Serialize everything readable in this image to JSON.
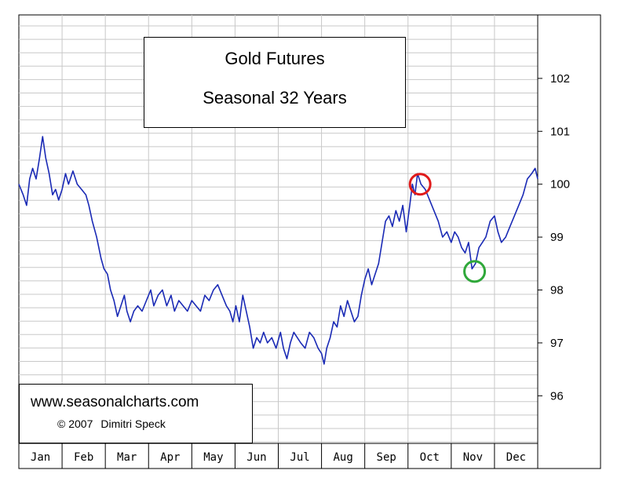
{
  "chart_data": {
    "type": "line",
    "title": "Gold Futures",
    "subtitle": "Seasonal 32 Years",
    "categories": [
      "Jan",
      "Feb",
      "Mar",
      "Apr",
      "May",
      "Jun",
      "Jul",
      "Aug",
      "Sep",
      "Oct",
      "Nov",
      "Dec"
    ],
    "y_ticks": [
      "96",
      "97",
      "98",
      "99",
      "100",
      "101",
      "102"
    ],
    "ylim": [
      95.1,
      103.2
    ],
    "x_range": [
      0,
      12
    ],
    "grid": true,
    "y_axis_side": "right",
    "series": [
      {
        "color": "#1a2ab5",
        "points": [
          [
            0.0,
            100.0
          ],
          [
            0.1,
            99.8
          ],
          [
            0.18,
            99.6
          ],
          [
            0.25,
            100.1
          ],
          [
            0.32,
            100.3
          ],
          [
            0.4,
            100.1
          ],
          [
            0.48,
            100.5
          ],
          [
            0.55,
            100.9
          ],
          [
            0.62,
            100.5
          ],
          [
            0.7,
            100.2
          ],
          [
            0.78,
            99.8
          ],
          [
            0.85,
            99.9
          ],
          [
            0.92,
            99.7
          ],
          [
            1.0,
            99.9
          ],
          [
            1.08,
            100.2
          ],
          [
            1.15,
            100.0
          ],
          [
            1.25,
            100.25
          ],
          [
            1.35,
            100.0
          ],
          [
            1.45,
            99.9
          ],
          [
            1.55,
            99.8
          ],
          [
            1.62,
            99.6
          ],
          [
            1.7,
            99.3
          ],
          [
            1.8,
            99.0
          ],
          [
            1.9,
            98.6
          ],
          [
            1.97,
            98.4
          ],
          [
            2.05,
            98.3
          ],
          [
            2.12,
            98.0
          ],
          [
            2.2,
            97.8
          ],
          [
            2.28,
            97.5
          ],
          [
            2.36,
            97.7
          ],
          [
            2.44,
            97.9
          ],
          [
            2.5,
            97.6
          ],
          [
            2.58,
            97.4
          ],
          [
            2.66,
            97.6
          ],
          [
            2.75,
            97.7
          ],
          [
            2.85,
            97.6
          ],
          [
            2.95,
            97.8
          ],
          [
            3.05,
            98.0
          ],
          [
            3.12,
            97.7
          ],
          [
            3.22,
            97.9
          ],
          [
            3.32,
            98.0
          ],
          [
            3.42,
            97.7
          ],
          [
            3.52,
            97.9
          ],
          [
            3.6,
            97.6
          ],
          [
            3.7,
            97.8
          ],
          [
            3.8,
            97.7
          ],
          [
            3.9,
            97.6
          ],
          [
            4.0,
            97.8
          ],
          [
            4.1,
            97.7
          ],
          [
            4.2,
            97.6
          ],
          [
            4.3,
            97.9
          ],
          [
            4.4,
            97.8
          ],
          [
            4.5,
            98.0
          ],
          [
            4.6,
            98.1
          ],
          [
            4.7,
            97.9
          ],
          [
            4.8,
            97.7
          ],
          [
            4.88,
            97.6
          ],
          [
            4.95,
            97.4
          ],
          [
            5.02,
            97.7
          ],
          [
            5.1,
            97.4
          ],
          [
            5.18,
            97.9
          ],
          [
            5.26,
            97.6
          ],
          [
            5.34,
            97.3
          ],
          [
            5.42,
            96.9
          ],
          [
            5.5,
            97.1
          ],
          [
            5.58,
            97.0
          ],
          [
            5.66,
            97.2
          ],
          [
            5.75,
            97.0
          ],
          [
            5.85,
            97.1
          ],
          [
            5.95,
            96.9
          ],
          [
            6.05,
            97.2
          ],
          [
            6.12,
            96.9
          ],
          [
            6.2,
            96.7
          ],
          [
            6.28,
            97.0
          ],
          [
            6.36,
            97.2
          ],
          [
            6.44,
            97.1
          ],
          [
            6.52,
            97.0
          ],
          [
            6.62,
            96.9
          ],
          [
            6.72,
            97.2
          ],
          [
            6.82,
            97.1
          ],
          [
            6.92,
            96.9
          ],
          [
            7.0,
            96.8
          ],
          [
            7.06,
            96.6
          ],
          [
            7.12,
            96.9
          ],
          [
            7.2,
            97.1
          ],
          [
            7.28,
            97.4
          ],
          [
            7.36,
            97.3
          ],
          [
            7.44,
            97.7
          ],
          [
            7.52,
            97.5
          ],
          [
            7.6,
            97.8
          ],
          [
            7.68,
            97.6
          ],
          [
            7.76,
            97.4
          ],
          [
            7.84,
            97.5
          ],
          [
            7.92,
            97.9
          ],
          [
            8.0,
            98.2
          ],
          [
            8.08,
            98.4
          ],
          [
            8.16,
            98.1
          ],
          [
            8.24,
            98.3
          ],
          [
            8.32,
            98.5
          ],
          [
            8.4,
            98.9
          ],
          [
            8.48,
            99.3
          ],
          [
            8.56,
            99.4
          ],
          [
            8.64,
            99.2
          ],
          [
            8.72,
            99.5
          ],
          [
            8.8,
            99.3
          ],
          [
            8.88,
            99.6
          ],
          [
            8.96,
            99.1
          ],
          [
            9.04,
            99.6
          ],
          [
            9.1,
            100.0
          ],
          [
            9.16,
            99.8
          ],
          [
            9.22,
            100.2
          ],
          [
            9.3,
            100.0
          ],
          [
            9.4,
            99.9
          ],
          [
            9.5,
            99.7
          ],
          [
            9.6,
            99.5
          ],
          [
            9.7,
            99.3
          ],
          [
            9.8,
            99.0
          ],
          [
            9.9,
            99.1
          ],
          [
            10.0,
            98.9
          ],
          [
            10.08,
            99.1
          ],
          [
            10.16,
            99.0
          ],
          [
            10.24,
            98.8
          ],
          [
            10.32,
            98.7
          ],
          [
            10.4,
            98.9
          ],
          [
            10.48,
            98.4
          ],
          [
            10.56,
            98.5
          ],
          [
            10.64,
            98.8
          ],
          [
            10.72,
            98.9
          ],
          [
            10.8,
            99.0
          ],
          [
            10.9,
            99.3
          ],
          [
            11.0,
            99.4
          ],
          [
            11.08,
            99.1
          ],
          [
            11.16,
            98.9
          ],
          [
            11.26,
            99.0
          ],
          [
            11.36,
            99.2
          ],
          [
            11.46,
            99.4
          ],
          [
            11.56,
            99.6
          ],
          [
            11.66,
            99.8
          ],
          [
            11.76,
            100.1
          ],
          [
            11.86,
            100.2
          ],
          [
            11.94,
            100.3
          ],
          [
            12.0,
            100.1
          ]
        ]
      }
    ],
    "annotations": [
      {
        "shape": "circle",
        "color": "#e01b1b",
        "x": 9.28,
        "y": 100.0
      },
      {
        "shape": "circle",
        "color": "#2fa83a",
        "x": 10.54,
        "y": 98.35
      }
    ]
  },
  "credit": {
    "site": "www.seasonalcharts.com",
    "copyright": "© 2007",
    "author": "Dimitri Speck"
  }
}
